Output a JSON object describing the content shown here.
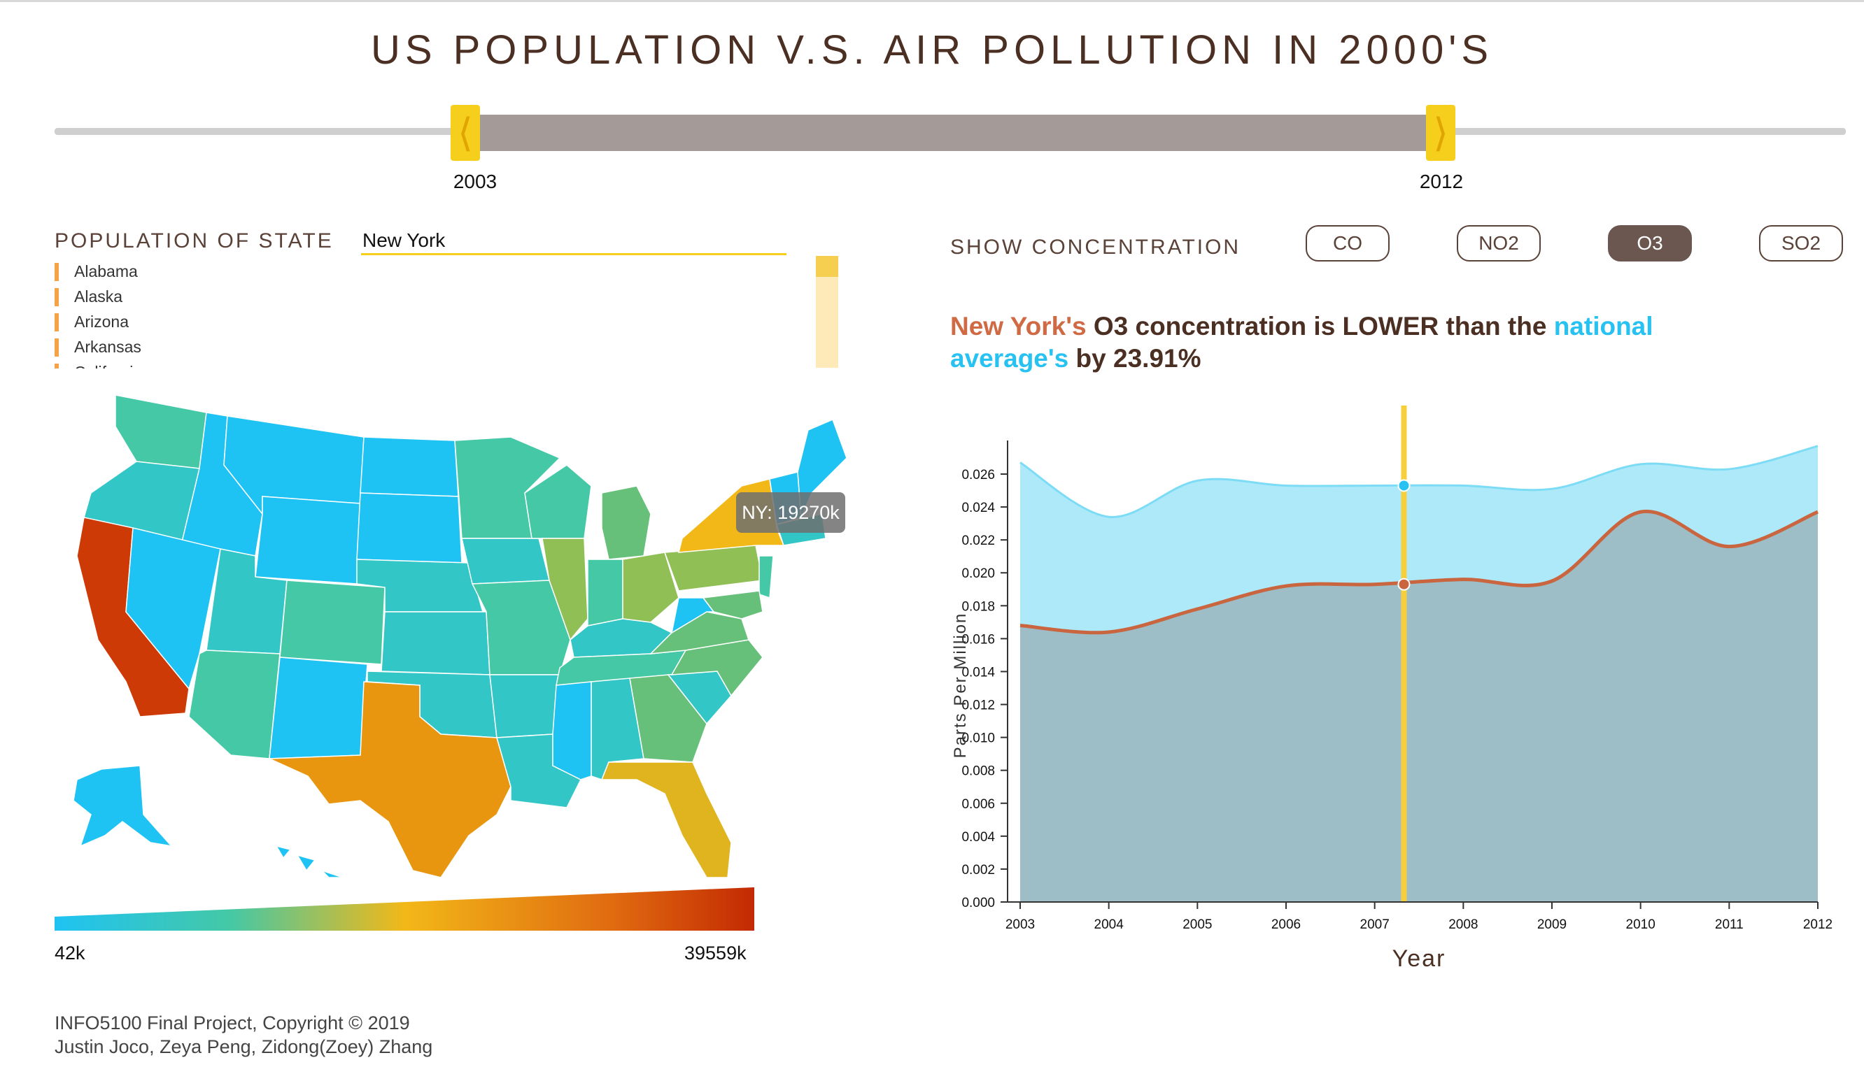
{
  "title": "US POPULATION V.S. AIR POLLUTION IN 2000'S",
  "slider": {
    "start_year": "2003",
    "end_year": "2012"
  },
  "population": {
    "label": "POPULATION OF STATE",
    "input_value": "New York",
    "states": [
      "Alabama",
      "Alaska",
      "Arizona",
      "Arkansas",
      "California"
    ]
  },
  "map": {
    "tooltip": "NY: 19270k",
    "legend_min": "42k",
    "legend_max": "39559k",
    "colors": {
      "low": "#1fc3f3",
      "mid1": "#44c8a6",
      "mid2": "#8fbf55",
      "mid3": "#f2b818",
      "high2": "#e5850e",
      "high": "#cd3a06"
    }
  },
  "concentration": {
    "label": "SHOW CONCENTRATION",
    "buttons": [
      {
        "label": "CO",
        "active": false
      },
      {
        "label": "NO2",
        "active": false
      },
      {
        "label": "O3",
        "active": true
      },
      {
        "label": "SO2",
        "active": false
      }
    ]
  },
  "message": {
    "state": "New York's",
    "part1": " O3 concentration is LOWER than the ",
    "national": "national average's",
    "part2": " by 23.91%"
  },
  "footer": {
    "line1": "INFO5100 Final Project, Copyright © 2019",
    "line2": "Justin Joco, Zeya Peng, Zidong(Zoey) Zhang"
  },
  "chart_data": {
    "type": "area",
    "xlabel": "Year",
    "ylabel": "Parts Per Million",
    "x": [
      2003,
      2004,
      2005,
      2006,
      2007,
      2008,
      2009,
      2010,
      2011,
      2012
    ],
    "ylim": [
      0,
      0.026
    ],
    "yticks": [
      "0.000",
      "0.002",
      "0.004",
      "0.006",
      "0.008",
      "0.010",
      "0.012",
      "0.014",
      "0.016",
      "0.018",
      "0.020",
      "0.022",
      "0.024",
      "0.026"
    ],
    "series": [
      {
        "values": [
          0.0267,
          0.0234,
          0.0256,
          0.0253,
          0.0253,
          0.0253,
          0.0251,
          0.0266,
          0.0263,
          0.0277
        ],
        "color": "#aee9fa",
        "stroke": "#7ddcf5"
      },
      {
        "values": [
          0.0168,
          0.0164,
          0.0178,
          0.0192,
          0.0193,
          0.0196,
          0.0195,
          0.0237,
          0.0216,
          0.0237
        ],
        "color": "#9dbec7",
        "stroke": "#c9653f"
      }
    ],
    "marker_year": 2007.33,
    "marker_values": [
      0.0253,
      0.0193
    ],
    "colors": {
      "marker": "#f6cf3a",
      "axis": "#333333"
    }
  }
}
